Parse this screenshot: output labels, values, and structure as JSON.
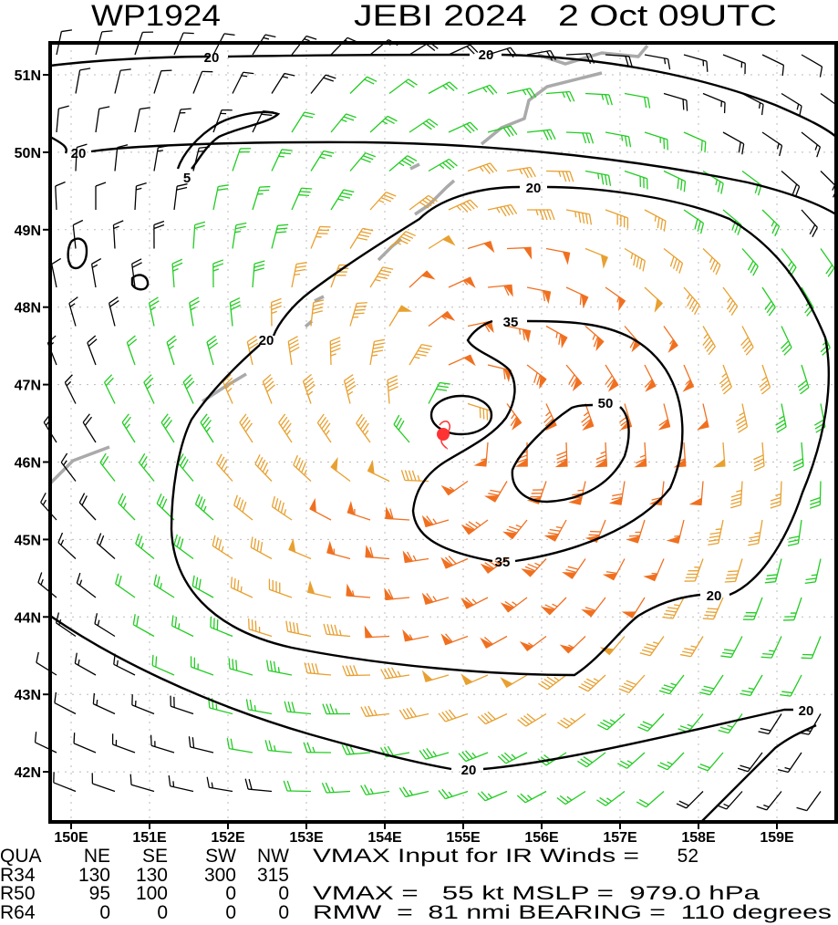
{
  "title": {
    "storm_id": "WP1924",
    "storm_info": "JEBI 2024   2 Oct 09UTC"
  },
  "axes": {
    "lon_ticks": [
      "150E",
      "151E",
      "152E",
      "153E",
      "154E",
      "155E",
      "156E",
      "157E",
      "158E",
      "159E"
    ],
    "lat_ticks": [
      "51N",
      "50N",
      "49N",
      "48N",
      "47N",
      "46N",
      "45N",
      "44N",
      "43N",
      "42N"
    ]
  },
  "contour_labels": {
    "c20a": "20",
    "c20b": "20",
    "c20c": "20",
    "c20d": "20",
    "c20e": "20",
    "c20f": "20",
    "c20g": "20",
    "c5": "5",
    "c35a": "35",
    "c35b": "35",
    "c50": "50"
  },
  "storm_center": {
    "lon": 154.8,
    "lat": 46.35,
    "color": "#ff3333"
  },
  "wind_colors": {
    "lt20": "#000000",
    "20to35": "#22cc22",
    "35to50": "#e8a030",
    "ge50": "#f07020"
  },
  "info": {
    "header": {
      "qua": "QUA",
      "ne": "NE",
      "se": "SE",
      "sw": "SW",
      "nw": "NW",
      "vmax_input": "VMAX Input for IR Winds =",
      "vmax_input_val": "52"
    },
    "r34": {
      "label": "R34",
      "ne": "130",
      "se": "130",
      "sw": "300",
      "nw": "315"
    },
    "r50": {
      "label": "R50",
      "ne": "95",
      "se": "100",
      "sw": "0",
      "nw": "0",
      "vmax": "VMAX =   55 kt MSLP =  979.0 hPa"
    },
    "r64": {
      "label": "R64",
      "ne": "0",
      "se": "0",
      "sw": "0",
      "nw": "0",
      "rmw": "RMW  =  81 nmi BEARING =  110 degrees"
    }
  }
}
